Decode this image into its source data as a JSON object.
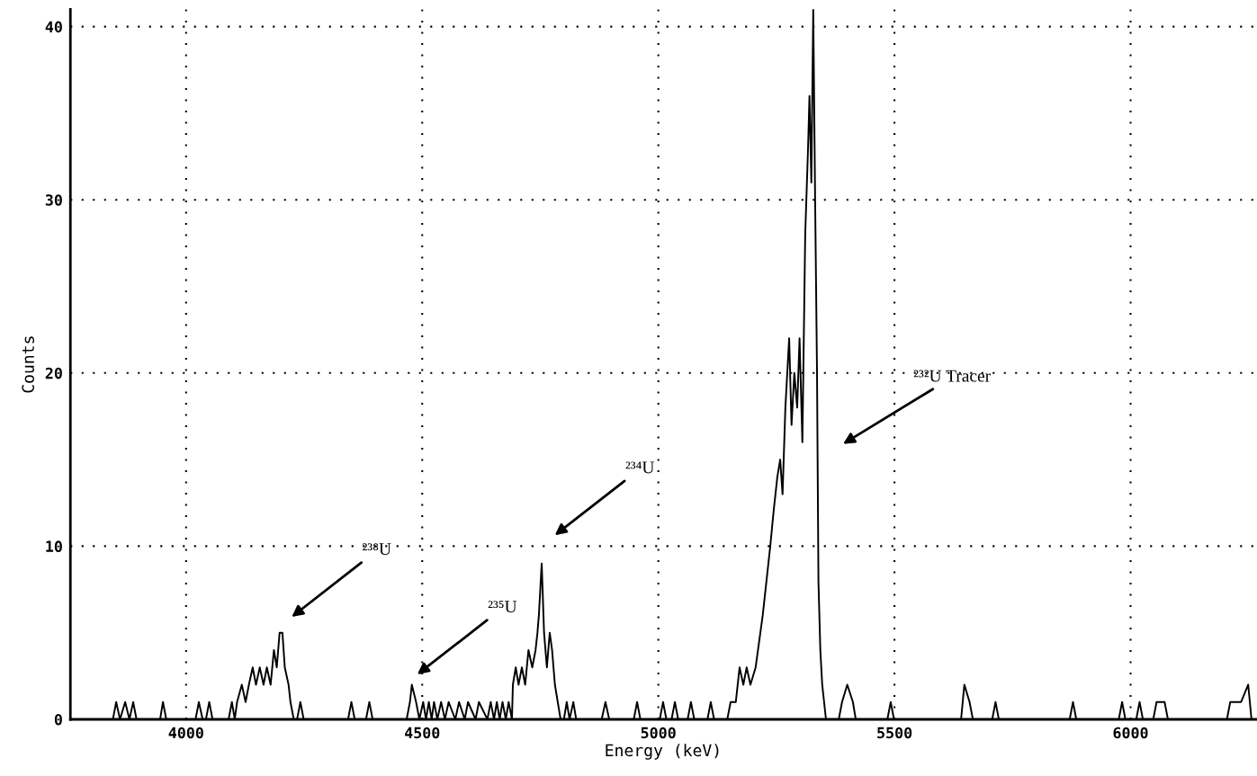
{
  "chart_data": {
    "type": "line",
    "xlabel": "Energy (keV)",
    "ylabel": "Counts",
    "x": [
      3845,
      3852,
      3860,
      3871,
      3880,
      3888,
      3895,
      3945,
      3951,
      3958,
      4020,
      4027,
      4035,
      4042,
      4049,
      4056,
      4090,
      4097,
      4103,
      4108,
      4118,
      4126,
      4133,
      4141,
      4148,
      4156,
      4164,
      4171,
      4179,
      4186,
      4192,
      4198,
      4204,
      4209,
      4217,
      4221,
      4228,
      4235,
      4242,
      4249,
      4343,
      4350,
      4357,
      4381,
      4388,
      4395,
      4467,
      4474,
      4478,
      4487,
      4494,
      4502,
      4508,
      4514,
      4520,
      4525,
      4532,
      4540,
      4548,
      4556,
      4570,
      4578,
      4590,
      4597,
      4613,
      4620,
      4638,
      4645,
      4652,
      4658,
      4664,
      4670,
      4677,
      4683,
      4690,
      4692,
      4698,
      4704,
      4711,
      4718,
      4725,
      4733,
      4740,
      4744,
      4747,
      4753,
      4758,
      4764,
      4770,
      4775,
      4781,
      4787,
      4793,
      4800,
      4806,
      4812,
      4820,
      4826,
      4880,
      4888,
      4896,
      4948,
      4955,
      4962,
      5003,
      5010,
      5017,
      5028,
      5035,
      5042,
      5062,
      5069,
      5076,
      5104,
      5111,
      5118,
      5146,
      5153,
      5164,
      5172,
      5180,
      5187,
      5195,
      5206,
      5216,
      5221,
      5229,
      5237,
      5244,
      5252,
      5258,
      5263,
      5269,
      5277,
      5282,
      5288,
      5294,
      5299,
      5305,
      5311,
      5317,
      5320,
      5324,
      5328,
      5332,
      5336,
      5339,
      5343,
      5347,
      5351,
      5355,
      5382,
      5389,
      5400,
      5412,
      5418,
      5485,
      5492,
      5499,
      5641,
      5648,
      5659,
      5666,
      5707,
      5714,
      5721,
      5871,
      5878,
      5885,
      5975,
      5982,
      5989,
      6012,
      6019,
      6026,
      6048,
      6055,
      6072,
      6079,
      6204,
      6211,
      6222,
      6234,
      6249,
      6256
    ],
    "values": [
      0,
      1,
      0,
      1,
      0,
      1,
      0,
      0,
      1,
      0,
      0,
      1,
      0,
      0,
      1,
      0,
      0,
      1,
      0,
      1,
      2,
      1,
      2,
      3,
      2,
      3,
      2,
      3,
      2,
      4,
      3,
      5,
      5,
      3,
      2,
      1,
      0,
      0,
      1,
      0,
      0,
      1,
      0,
      0,
      1,
      0,
      0,
      1,
      2,
      1,
      0,
      1,
      0,
      1,
      0,
      1,
      0,
      1,
      0,
      1,
      0,
      1,
      0,
      1,
      0,
      1,
      0,
      1,
      0,
      1,
      0,
      1,
      0,
      1,
      0,
      2,
      3,
      2,
      3,
      2,
      4,
      3,
      4,
      5,
      6,
      9,
      5,
      3,
      5,
      4,
      2,
      1,
      0,
      0,
      1,
      0,
      1,
      0,
      0,
      1,
      0,
      0,
      1,
      0,
      0,
      1,
      0,
      0,
      1,
      0,
      0,
      1,
      0,
      0,
      1,
      0,
      0,
      1,
      1,
      3,
      2,
      3,
      2,
      3,
      5,
      6,
      8,
      10,
      12,
      14,
      15,
      13,
      18,
      22,
      17,
      20,
      18,
      22,
      16,
      28,
      33,
      36,
      31,
      41,
      30,
      20,
      8,
      4,
      2,
      1,
      0,
      0,
      1,
      2,
      1,
      0,
      0,
      1,
      0,
      0,
      2,
      1,
      0,
      0,
      1,
      0,
      0,
      1,
      0,
      0,
      1,
      0,
      0,
      1,
      0,
      0,
      1,
      1,
      0,
      0,
      1,
      1,
      1,
      2,
      0
    ],
    "color": "#000000",
    "xlim": [
      3755,
      6265
    ],
    "ylim": [
      0,
      41
    ],
    "xticks": [
      4000,
      4500,
      5000,
      5500,
      6000
    ],
    "yticks": [
      0,
      10,
      20,
      30,
      40
    ],
    "grid": true,
    "marker": "none",
    "line_style": "solid",
    "legend": false,
    "annotations": [
      "²³⁸U",
      "²³⁵U",
      "²³⁴U",
      "²³²U Tracer"
    ]
  }
}
